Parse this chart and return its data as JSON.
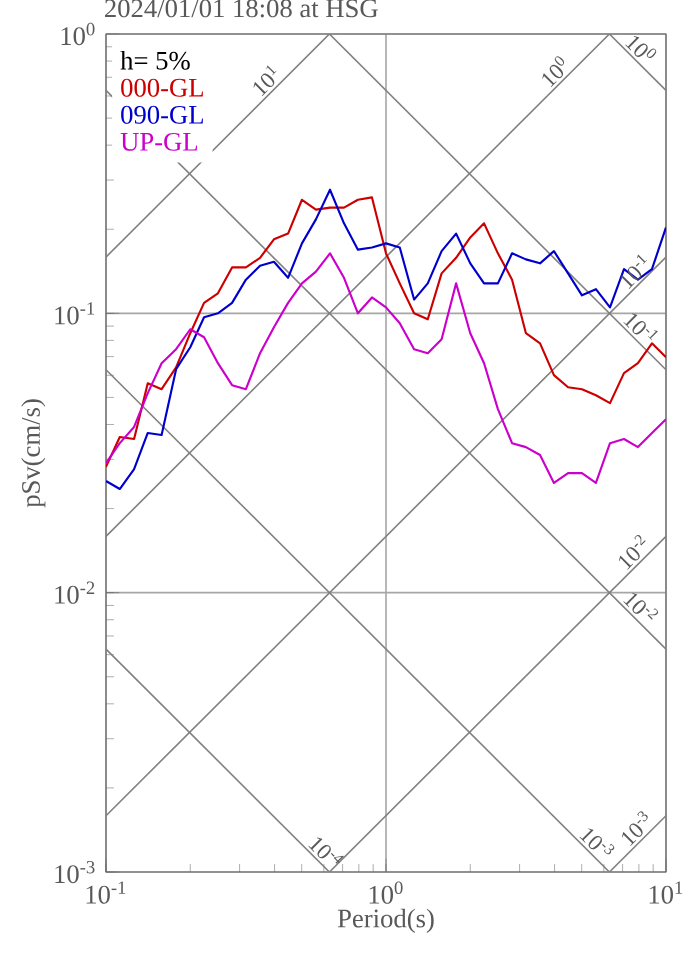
{
  "chart_data": {
    "type": "line",
    "title": "2024/01/01 18:08 at HSG",
    "xlabel": "Period(s)",
    "ylabel": "pSv(cm/s)",
    "legend_title": "h= 5%",
    "legend": "top left",
    "log": "xy",
    "grid": true,
    "xlim": [
      0.1,
      10
    ],
    "ylim": [
      0.001,
      1
    ],
    "xticks": [
      {
        "value": 0.1,
        "label": "10$^{-1}$"
      },
      {
        "value": 1,
        "label": "10$^{0}$"
      },
      {
        "value": 10,
        "label": "10$^{1}$"
      }
    ],
    "yticks": [
      {
        "value": 0.001,
        "label": "10$^{-3}$"
      },
      {
        "value": 0.01,
        "label": "10$^{-2}$"
      },
      {
        "value": 0.1,
        "label": "10$^{-1}$"
      },
      {
        "value": 1,
        "label": "10$^{0}$"
      }
    ],
    "x": [
      0.1,
      0.112,
      0.126,
      0.141,
      0.158,
      0.178,
      0.2,
      0.224,
      0.251,
      0.282,
      0.316,
      0.355,
      0.398,
      0.447,
      0.501,
      0.562,
      0.631,
      0.708,
      0.794,
      0.891,
      1,
      1.12,
      1.26,
      1.41,
      1.58,
      1.78,
      2,
      2.24,
      2.51,
      2.82,
      3.16,
      3.55,
      3.98,
      4.47,
      5.01,
      5.62,
      6.31,
      7.08,
      7.94,
      8.91,
      10
    ],
    "series": [
      {
        "type": "line",
        "color": "#808080",
        "x": [
          0.1,
          0.628
        ],
        "values": [
          0.159,
          1
        ]
      },
      {
        "type": "line",
        "color": "#808080",
        "x": [
          0.1,
          6.28
        ],
        "values": [
          0.0159,
          1
        ]
      },
      {
        "type": "line",
        "color": "#808080",
        "x": [
          0.1,
          10
        ],
        "values": [
          0.00159,
          0.159
        ]
      },
      {
        "type": "line",
        "color": "#808080",
        "x": [
          0.628,
          10
        ],
        "values": [
          0.001,
          0.0159
        ]
      },
      {
        "type": "line",
        "color": "#808080",
        "x": [
          6.28,
          10
        ],
        "values": [
          0.001,
          0.00159
        ]
      },
      {
        "type": "line",
        "color": "#808080",
        "x": [
          6.28,
          10
        ],
        "values": [
          1,
          0.628
        ]
      },
      {
        "type": "line",
        "color": "#808080",
        "x": [
          0.628,
          10
        ],
        "values": [
          1,
          0.0628
        ]
      },
      {
        "type": "line",
        "color": "#808080",
        "x": [
          0.1,
          10
        ],
        "values": [
          0.628,
          0.00628
        ]
      },
      {
        "type": "line",
        "color": "#808080",
        "x": [
          0.1,
          6.28
        ],
        "values": [
          0.0628,
          0.001
        ]
      },
      {
        "type": "line",
        "color": "#808080",
        "x": [
          0.1,
          0.628
        ],
        "values": [
          0.00628,
          0.001
        ]
      },
      {
        "name": "000-GL",
        "color": "#cc0000",
        "values": [
          0.0282,
          0.0361,
          0.0355,
          0.0562,
          0.0535,
          0.0641,
          0.0849,
          0.109,
          0.118,
          0.146,
          0.146,
          0.158,
          0.184,
          0.193,
          0.255,
          0.235,
          0.239,
          0.239,
          0.255,
          0.26,
          0.164,
          0.128,
          0.1,
          0.0952,
          0.139,
          0.158,
          0.187,
          0.21,
          0.164,
          0.132,
          0.0849,
          0.0781,
          0.0601,
          0.0544,
          0.0535,
          0.0509,
          0.0477,
          0.0611,
          0.0663,
          0.0781,
          0.0697
        ]
      },
      {
        "name": "090-GL",
        "color": "#0000cc",
        "values": [
          0.0251,
          0.0235,
          0.0277,
          0.0373,
          0.0367,
          0.0631,
          0.0756,
          0.0968,
          0.1,
          0.109,
          0.132,
          0.148,
          0.153,
          0.134,
          0.178,
          0.217,
          0.277,
          0.21,
          0.169,
          0.172,
          0.178,
          0.172,
          0.112,
          0.128,
          0.167,
          0.193,
          0.151,
          0.128,
          0.128,
          0.164,
          0.156,
          0.151,
          0.167,
          0.139,
          0.116,
          0.122,
          0.105,
          0.144,
          0.132,
          0.144,
          0.203
        ]
      },
      {
        "name": "UP-GL",
        "color": "#cc00cc",
        "values": [
          0.0291,
          0.0343,
          0.0392,
          0.0518,
          0.0663,
          0.0744,
          0.0877,
          0.0821,
          0.0663,
          0.0553,
          0.0535,
          0.072,
          0.0891,
          0.109,
          0.128,
          0.141,
          0.164,
          0.134,
          0.1,
          0.114,
          0.105,
          0.0921,
          0.0744,
          0.072,
          0.0807,
          0.128,
          0.0849,
          0.0663,
          0.0454,
          0.0343,
          0.0332,
          0.0311,
          0.0247,
          0.0268,
          0.0268,
          0.0247,
          0.0343,
          0.0355,
          0.0332,
          0.0373,
          0.0418
        ]
      }
    ],
    "annotations": [
      {
        "text": "10$^{1}$",
        "x": 0.4,
        "y": 0.637
      },
      {
        "text": "10$^{0}$",
        "x": 4.3,
        "y": 0.685
      },
      {
        "text": "10$^{0}$",
        "x": 7.6,
        "y": 0.826
      },
      {
        "text": "10$^{-1}$",
        "x": 8.3,
        "y": 0.132
      },
      {
        "text": "10$^{-1}$",
        "x": 7.6,
        "y": 0.0826
      },
      {
        "text": "10$^{-2}$",
        "x": 8.2,
        "y": 0.01305
      },
      {
        "text": "10$^{-2}$",
        "x": 7.6,
        "y": 0.00826
      },
      {
        "text": "10$^{-3}$",
        "x": 8.4,
        "y": 0.001337
      },
      {
        "text": "10$^{-3}$",
        "x": 5.3,
        "y": 0.001185
      },
      {
        "text": "10$^{-4}$",
        "x": 0.57,
        "y": 0.0011
      }
    ]
  }
}
